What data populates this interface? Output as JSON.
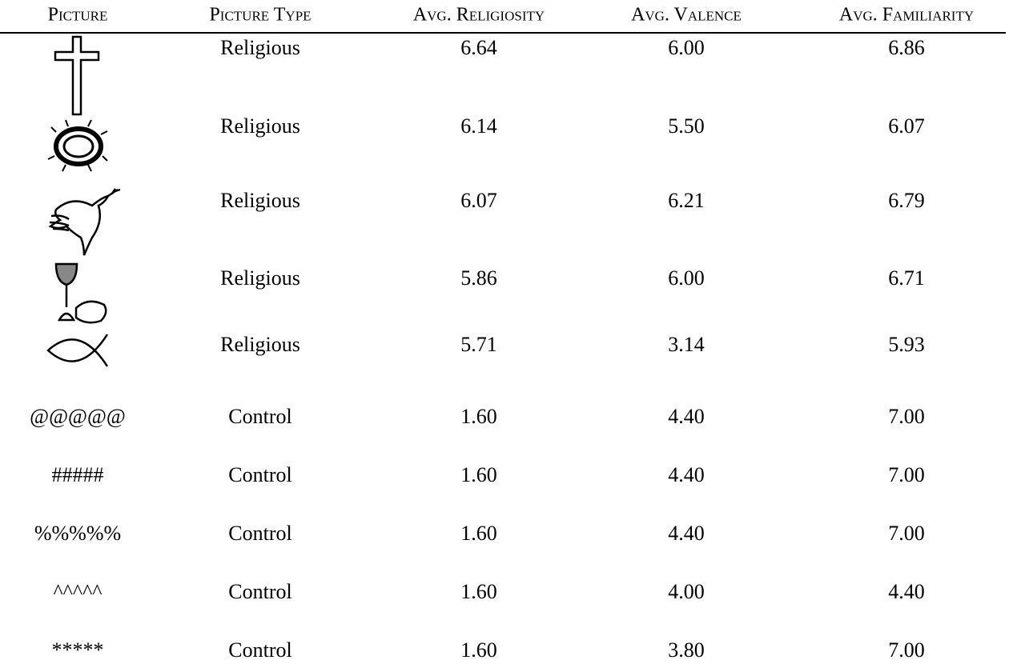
{
  "table": {
    "header": {
      "picture": "Picture",
      "type": "Picture Type",
      "religiosity": "Avg. Religiosity",
      "valence": "Avg. Valence",
      "familiarity": "Avg. Familiarity"
    },
    "rows": [
      {
        "type": "Religious",
        "religiosity": "6.64",
        "valence": "6.00",
        "familiarity": "6.86"
      },
      {
        "type": "Religious",
        "religiosity": "6.14",
        "valence": "5.50",
        "familiarity": "6.07"
      },
      {
        "type": "Religious",
        "religiosity": "6.07",
        "valence": "6.21",
        "familiarity": "6.79"
      },
      {
        "type": "Religious",
        "religiosity": "5.86",
        "valence": "6.00",
        "familiarity": "6.71"
      },
      {
        "type": "Religious",
        "religiosity": "5.71",
        "valence": "3.14",
        "familiarity": "5.93"
      },
      {
        "picture": "@@@@@",
        "type": "Control",
        "religiosity": "1.60",
        "valence": "4.40",
        "familiarity": "7.00"
      },
      {
        "picture": "#####",
        "type": "Control",
        "religiosity": "1.60",
        "valence": "4.40",
        "familiarity": "7.00"
      },
      {
        "picture": "%%%%%",
        "type": "Control",
        "religiosity": "1.60",
        "valence": "4.40",
        "familiarity": "7.00"
      },
      {
        "picture": "^^^^^",
        "type": "Control",
        "religiosity": "1.60",
        "valence": "4.00",
        "familiarity": "4.40"
      },
      {
        "picture": "*****",
        "type": "Control",
        "religiosity": "1.60",
        "valence": "3.80",
        "familiarity": "7.00"
      }
    ]
  }
}
